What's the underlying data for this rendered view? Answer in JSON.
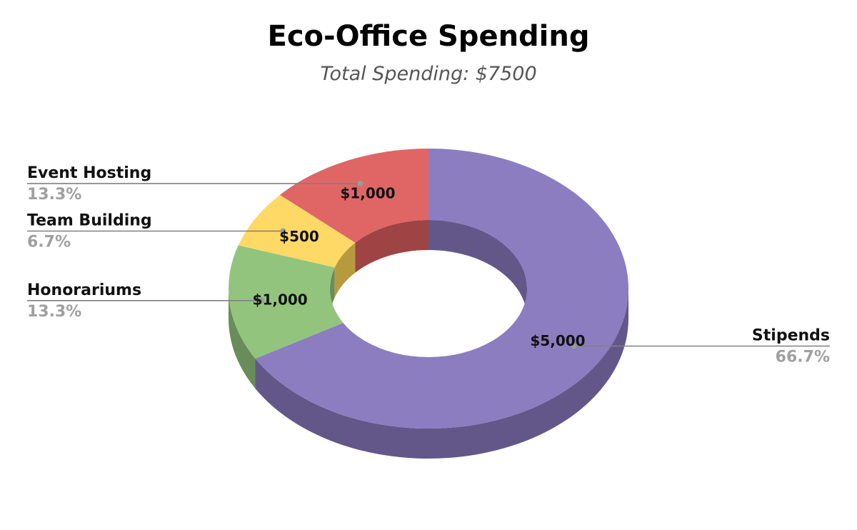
{
  "chart_data": {
    "type": "pie",
    "variant": "3d-donut",
    "title": "Eco-Office Spending",
    "subtitle": "Total Spending: $7500",
    "legend": "none",
    "series": [
      {
        "name": "Stipends",
        "value": 5000,
        "value_label": "$5,000",
        "percent_label": "66.7%",
        "color": "#8c7dc0",
        "side_color": "#63578a"
      },
      {
        "name": "Honorariums",
        "value": 1000,
        "value_label": "$1,000",
        "percent_label": "13.3%",
        "color": "#93c47d",
        "side_color": "#6a8c5a"
      },
      {
        "name": "Team Building",
        "value": 500,
        "value_label": "$500",
        "percent_label": "6.7%",
        "color": "#ffd966",
        "side_color": "#b89a3e"
      },
      {
        "name": "Event Hosting",
        "value": 1000,
        "value_label": "$1,000",
        "percent_label": "13.3%",
        "color": "#e06666",
        "side_color": "#9e4444"
      }
    ]
  }
}
